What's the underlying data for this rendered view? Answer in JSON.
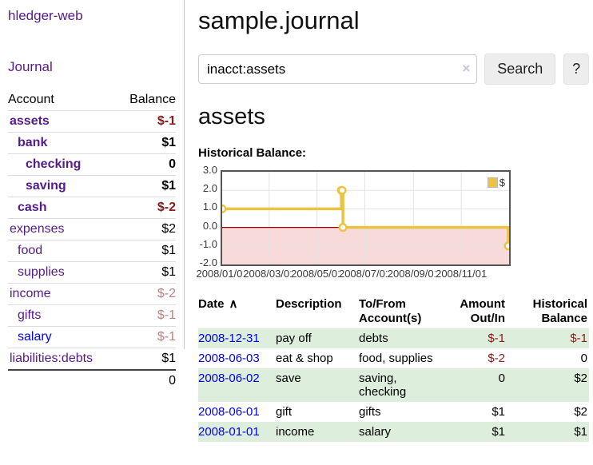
{
  "app": {
    "title": "hledger-web"
  },
  "sidebar": {
    "journal_link": "Journal",
    "table": {
      "account_header": "Account",
      "balance_header": "Balance",
      "rows": [
        {
          "account": "assets",
          "balance": "$-1",
          "depth": 1,
          "bold": true,
          "blue_link": false
        },
        {
          "account": "bank",
          "balance": "$1",
          "depth": 2,
          "bold": true,
          "blue_link": false
        },
        {
          "account": "checking",
          "balance": "0",
          "depth": 3,
          "bold": true,
          "blue_link": false
        },
        {
          "account": "saving",
          "balance": "$1",
          "depth": 3,
          "bold": true,
          "blue_link": false
        },
        {
          "account": "cash",
          "balance": "$-2",
          "depth": 2,
          "bold": true,
          "blue_link": false
        },
        {
          "account": "expenses",
          "balance": "$2",
          "depth": 1,
          "bold": false,
          "blue_link": false
        },
        {
          "account": "food",
          "balance": "$1",
          "depth": 2,
          "bold": false,
          "blue_link": false
        },
        {
          "account": "supplies",
          "balance": "$1",
          "depth": 2,
          "bold": false,
          "blue_link": false
        },
        {
          "account": "income",
          "balance": "$-2",
          "depth": 1,
          "bold": false,
          "blue_link": false
        },
        {
          "account": "gifts",
          "balance": "$-1",
          "depth": 2,
          "bold": false,
          "blue_link": false
        },
        {
          "account": "salary",
          "balance": "$-1",
          "depth": 2,
          "bold": false,
          "blue_link": true
        },
        {
          "account": "liabilities:debts",
          "balance": "$1",
          "depth": 1,
          "bold": false,
          "blue_link": false
        }
      ],
      "total": "0"
    }
  },
  "main": {
    "title": "sample.journal",
    "search": {
      "value": "inacct:assets",
      "clear_icon": "×",
      "search_button": "Search",
      "help_button": "?"
    },
    "account_heading": "assets",
    "chart_label": "Historical Balance:"
  },
  "chart_data": {
    "type": "line",
    "title": "Historical Balance",
    "steps": true,
    "x_range": [
      "2008-01-01",
      "2009-01-01"
    ],
    "x_ticks": [
      "2008/01/01",
      "2008/03/01",
      "2008/05/01",
      "2008/07/01",
      "2008/09/01",
      "2008/11/01"
    ],
    "y_ticks": [
      "3.0",
      "2.0",
      "1.0",
      "0.0",
      "-1.0",
      "-2.0"
    ],
    "ylim": [
      -2,
      3
    ],
    "grid": true,
    "legend_position": "top-right",
    "series": [
      {
        "name": "$",
        "color": "#edc240",
        "points": [
          {
            "x": "2008-01-01",
            "y": 1
          },
          {
            "x": "2008-06-01",
            "y": 2
          },
          {
            "x": "2008-06-02",
            "y": 2
          },
          {
            "x": "2008-06-03",
            "y": 0
          },
          {
            "x": "2008-12-31",
            "y": -1
          }
        ]
      }
    ],
    "negative_region_color": "#f9dada",
    "zero_line_color": "#8b0000",
    "grid_color": "#e3e3e3"
  },
  "register": {
    "headers": {
      "date": "Date",
      "sort_icon": "∧",
      "description": "Description",
      "account": "To/From Account(s)",
      "amount": "Amount Out/In",
      "balance": "Historical Balance"
    },
    "rows": [
      {
        "date": "2008-12-31",
        "description": "pay off",
        "accounts": "debts",
        "amount": "$-1",
        "balance": "$-1"
      },
      {
        "date": "2008-06-03",
        "description": "eat & shop",
        "accounts": "food, supplies",
        "amount": "$-2",
        "balance": "0"
      },
      {
        "date": "2008-06-02",
        "description": "save",
        "accounts": "saving, checking",
        "amount": "0",
        "balance": "$2"
      },
      {
        "date": "2008-06-01",
        "description": "gift",
        "accounts": "gifts",
        "amount": "$1",
        "balance": "$2"
      },
      {
        "date": "2008-01-01",
        "description": "income",
        "accounts": "salary",
        "amount": "$1",
        "balance": "$1"
      }
    ]
  }
}
